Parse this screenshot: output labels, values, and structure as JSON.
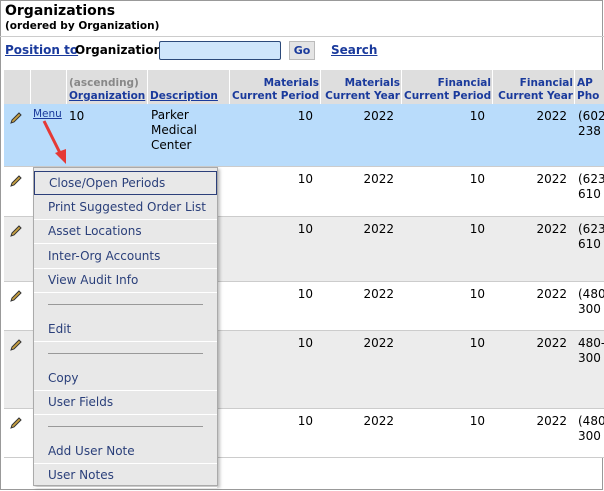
{
  "header": {
    "title": "Organizations",
    "subtitle": "(ordered by Organization)"
  },
  "toolbar": {
    "position_to": "Position to",
    "field_label": "Organization",
    "go": "Go",
    "search": "Search"
  },
  "table": {
    "columns": [
      {
        "top": "(ascending)",
        "label": "Organization"
      },
      {
        "label": "Description"
      },
      {
        "top": "Materials",
        "label": "Current Period"
      },
      {
        "top": "Materials",
        "label": "Current Year"
      },
      {
        "top": "Financial",
        "label": "Current Period"
      },
      {
        "top": "Financial",
        "label": "Current Year"
      },
      {
        "top": "AP",
        "label": "Pho"
      }
    ],
    "rows": [
      {
        "menu": "Menu",
        "organization": "10",
        "description": "Parker Medical Center",
        "materials_period": 10,
        "materials_year": 2022,
        "financial_period": 10,
        "financial_year": 2022,
        "phone": [
          "(602",
          "238"
        ]
      },
      {
        "materials_period": 10,
        "materials_year": 2022,
        "financial_period": 10,
        "financial_year": 2022,
        "phone": [
          "(623",
          "610"
        ]
      },
      {
        "materials_period": 10,
        "materials_year": 2022,
        "financial_period": 10,
        "financial_year": 2022,
        "phone": [
          "(623",
          "610"
        ]
      },
      {
        "materials_period": 10,
        "materials_year": 2022,
        "financial_period": 10,
        "financial_year": 2022,
        "phone": [
          "(480",
          "300"
        ]
      },
      {
        "materials_period": 10,
        "materials_year": 2022,
        "financial_period": 10,
        "financial_year": 2022,
        "phone": [
          "480-",
          "300"
        ]
      },
      {
        "materials_period": 10,
        "materials_year": 2022,
        "financial_period": 10,
        "financial_year": 2022,
        "phone": [
          "(480",
          "300"
        ]
      }
    ]
  },
  "menu": {
    "groups": [
      [
        "Close/Open Periods",
        "Print Suggested Order List",
        "Asset Locations",
        "Inter-Org Accounts",
        "View Audit Info"
      ],
      [
        "Edit"
      ],
      [
        "Copy",
        "User Fields"
      ],
      [
        "Add User Note",
        "User Notes"
      ]
    ]
  }
}
